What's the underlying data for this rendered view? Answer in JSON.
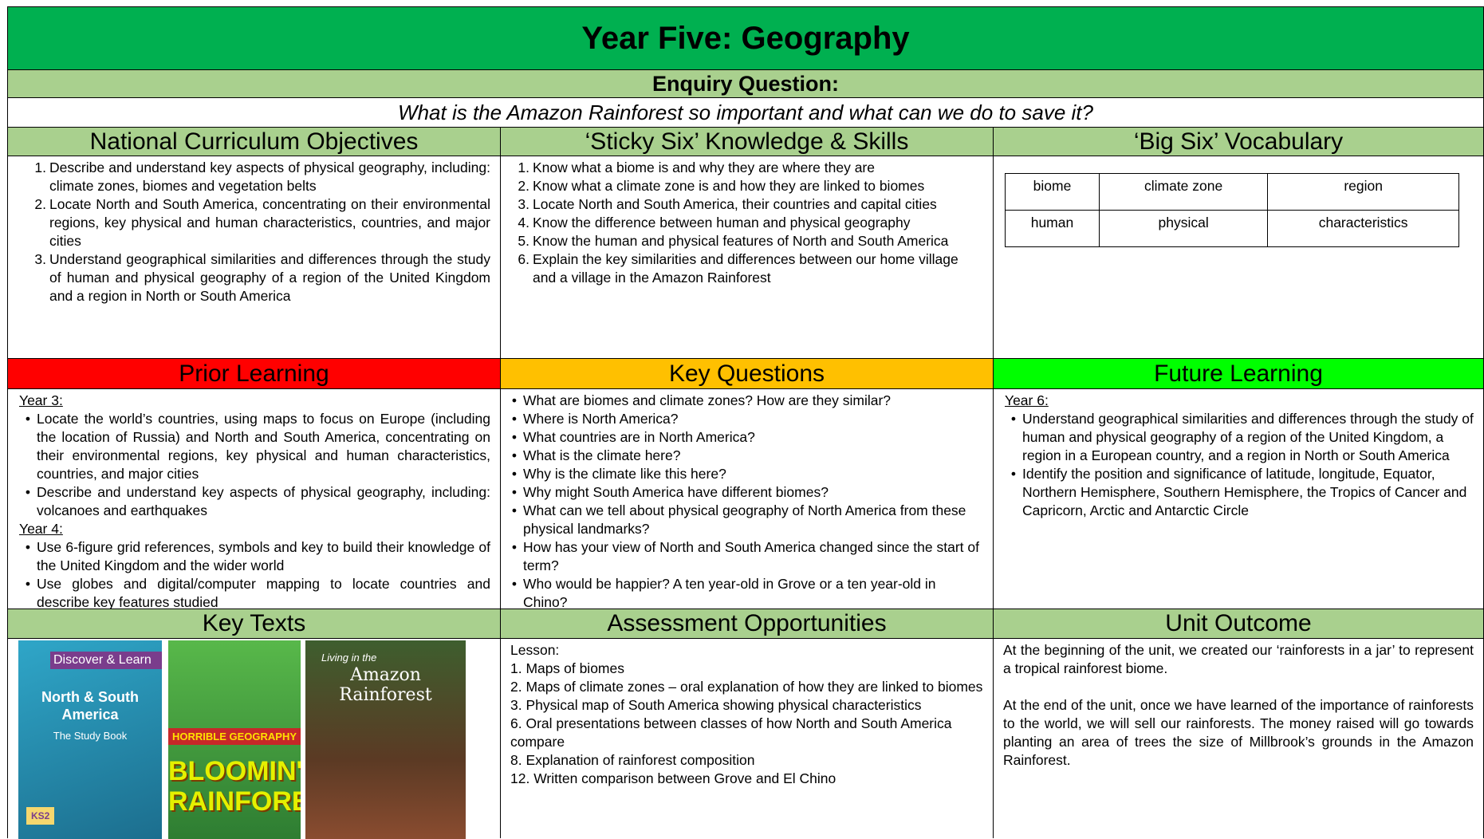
{
  "header": {
    "title": "Year Five: Geography",
    "enquiry_label": "Enquiry Question:",
    "enquiry_question": "What is the Amazon Rainforest so important and what can we do to save it?"
  },
  "national_curriculum": {
    "heading": "National Curriculum Objectives",
    "items": [
      {
        "number": "1.",
        "text": "Describe and understand key aspects of physical geography, including: climate zones, biomes and vegetation belts"
      },
      {
        "number": "2.",
        "text": "Locate North and South America, concentrating on their environmental regions, key physical and human characteristics, countries, and major cities"
      },
      {
        "number": "3.",
        "text": "Understand geographical similarities and differences through the study of human and physical geography of a region of the United Kingdom and a region in North or South America"
      }
    ]
  },
  "sticky_six": {
    "heading": "‘Sticky Six’ Knowledge & Skills",
    "items": [
      {
        "number": "1.",
        "text": "Know what a biome is and why they are where they are"
      },
      {
        "number": "2.",
        "text": "Know what a climate zone is and how they are linked to biomes"
      },
      {
        "number": "3.",
        "text": "Locate North and South America, their countries and capital cities"
      },
      {
        "number": "4.",
        "text": "Know the difference between human and physical geography"
      },
      {
        "number": "5.",
        "text": "Know the human and physical features of North and South America"
      },
      {
        "number": "6.",
        "text": "Explain the key similarities and differences between our home village and a village in the Amazon Rainforest"
      }
    ]
  },
  "big_six": {
    "heading": "‘Big Six’ Vocabulary",
    "rows": [
      [
        "biome",
        "climate zone",
        "region"
      ],
      [
        "human",
        "physical",
        "characteristics"
      ]
    ]
  },
  "prior_learning": {
    "heading": "Prior Learning",
    "groups": [
      {
        "label": "Year 3:",
        "items": [
          "Locate the world’s countries, using maps to focus on Europe (including the location of Russia) and North and South America, concentrating on their environmental regions, key physical and human characteristics, countries, and major cities",
          "Describe and understand key aspects of physical geography, including: volcanoes and earthquakes"
        ]
      },
      {
        "label": "Year 4:",
        "items": [
          "Use 6-figure grid references, symbols and key to build their knowledge of the United Kingdom and the wider world",
          "Use globes and digital/computer mapping to locate countries and describe key features studied"
        ]
      }
    ]
  },
  "key_questions": {
    "heading": "Key Questions",
    "items": [
      "What are biomes and climate zones? How are they similar?",
      "Where is North America?",
      "What countries are in North America?",
      "What is the climate here?",
      "Why is the climate like this here?",
      "Why might South America have different biomes?",
      "What can we tell about physical geography of North America from these physical landmarks?",
      "How has your view of North and South America changed since the start of term?",
      "Who would be happier? A ten year-old in Grove or a ten year-old in Chino?"
    ]
  },
  "future_learning": {
    "heading": "Future Learning",
    "groups": [
      {
        "label": "Year 6:",
        "items": [
          "Understand geographical similarities and differences through the study of human and physical geography of a region of the United Kingdom, a region in a European country, and a region in North or South America",
          "Identify the position and significance of latitude, longitude, Equator, Northern Hemisphere, Southern Hemisphere, the Tropics of Cancer and Capricorn, Arctic and Antarctic Circle"
        ]
      }
    ]
  },
  "key_texts": {
    "heading": "Key Texts",
    "books": [
      {
        "series": "Discover & Learn",
        "title": "North & South America",
        "subtitle": "The Study Book",
        "badge": "KS2"
      },
      {
        "series": "HORRIBLE GEOGRAPHY",
        "title": "BLOOMIN' RAINFORESTS"
      },
      {
        "series": "Living in the",
        "title": "Amazon Rainforest"
      }
    ]
  },
  "assessment": {
    "heading": "Assessment Opportunities",
    "intro": "Lesson:",
    "items": [
      "1. Maps of biomes",
      "2. Maps of climate zones – oral explanation of how they are linked to biomes",
      "3. Physical map of South America showing physical characteristics",
      "6. Oral presentations between classes of how North and South America compare",
      "8. Explanation of rainforest composition",
      "12. Written comparison between Grove and El Chino"
    ]
  },
  "unit_outcome": {
    "heading": "Unit Outcome",
    "paragraphs": [
      "At the beginning of the unit, we created our ‘rainforests in a jar’ to represent a tropical rainforest biome.",
      "At the end of the unit, once we have learned of the importance of rainforests to the world, we will sell our rainforests. The money raised will go towards planting an area of trees the size of Millbrook’s grounds in the Amazon Rainforest."
    ]
  }
}
